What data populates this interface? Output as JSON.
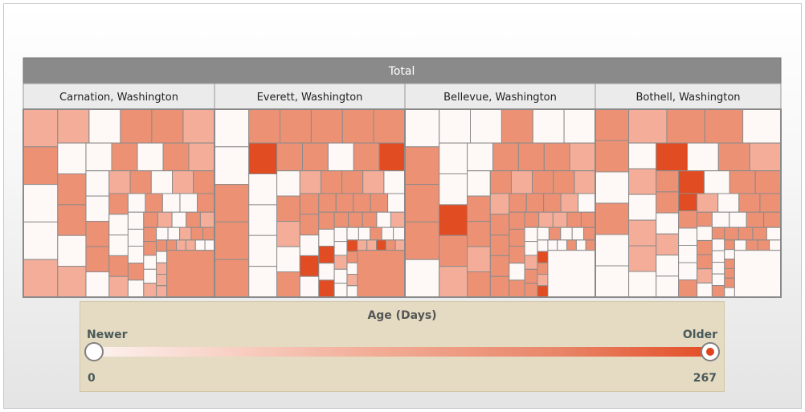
{
  "chart_data": {
    "type": "treemap",
    "root": "Total",
    "groups": [
      "Carnation, Washington",
      "Everett, Washington",
      "Bellevue, Washington",
      "Bothell, Washington"
    ],
    "color_metric": "Age (Days)",
    "color_range": [
      0,
      267
    ],
    "color_scale": [
      "#fdf2ef",
      "#e34e26"
    ]
  },
  "legend": {
    "title": "Age (Days)",
    "low_label": "Newer",
    "high_label": "Older",
    "min": "0",
    "max": "267"
  },
  "colors": {
    "header": "#8a8a8a",
    "subheader": "#ebebeb",
    "cell_border": "#8b8b8b",
    "low": "#fef8f6",
    "mid": "#ed9175",
    "high": "#e14c22"
  }
}
